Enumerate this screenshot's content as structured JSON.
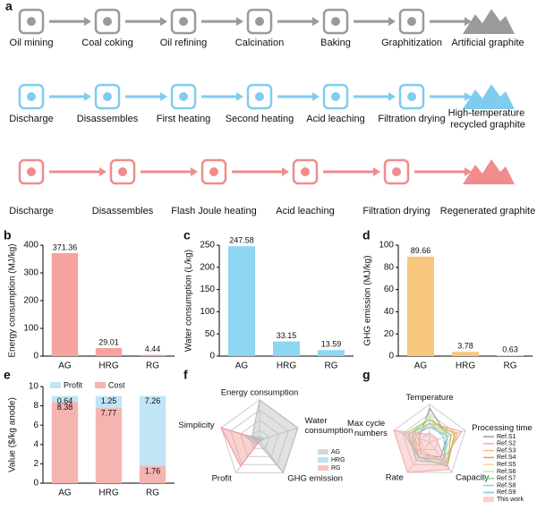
{
  "panel_labels": [
    "a",
    "b",
    "c",
    "d",
    "e",
    "f",
    "g"
  ],
  "process": {
    "rows": [
      {
        "color": "#9a9a9a",
        "steps": [
          "Oil mining",
          "Coal coking",
          "Oil refining",
          "Calcination",
          "Baking",
          "Graphitization",
          "Artificial graphite"
        ]
      },
      {
        "color": "#7fcdee",
        "steps": [
          "Discharge",
          "Disassembles",
          "First heating",
          "Second heating",
          "Acid leaching",
          "Filtration drying",
          "High-temperature recycled graphite"
        ]
      },
      {
        "color": "#f08c8c",
        "steps": [
          "Discharge",
          "Disassembles",
          "Flash Joule heating",
          "Acid leaching",
          "Filtration  drying",
          "Regenerated graphite"
        ]
      }
    ]
  },
  "chart_data": [
    {
      "type": "bar",
      "ylabel": "Energy consumption (MJ/kg)",
      "categories": [
        "AG",
        "HRG",
        "RG"
      ],
      "values": [
        371.36,
        29.01,
        4.44
      ],
      "color": "#f5a39c",
      "ylim": [
        0,
        400
      ],
      "yticks": [
        0,
        100,
        200,
        300,
        400
      ]
    },
    {
      "type": "bar",
      "ylabel": "Water consumption (L/kg)",
      "categories": [
        "AG",
        "HRG",
        "RG"
      ],
      "values": [
        247.58,
        33.15,
        13.59
      ],
      "color": "#8fd6f2",
      "ylim": [
        0,
        250
      ],
      "yticks": [
        0,
        50,
        100,
        150,
        200,
        250
      ]
    },
    {
      "type": "bar",
      "ylabel": "GHG emission (MJ/kg)",
      "categories": [
        "AG",
        "HRG",
        "RG"
      ],
      "values": [
        89.66,
        3.78,
        0.63
      ],
      "color": "#f6c77c",
      "ylim": [
        0,
        100
      ],
      "yticks": [
        0,
        20,
        40,
        60,
        80,
        100
      ]
    },
    {
      "type": "stacked_bar",
      "ylabel": "Value ($/kg anode)",
      "categories": [
        "AG",
        "HRG",
        "RG"
      ],
      "series": [
        {
          "name": "Profit",
          "color": "#bfe5f6",
          "values": [
            0.64,
            1.25,
            7.26
          ]
        },
        {
          "name": "Cost",
          "color": "#f6b4b0",
          "values": [
            8.38,
            7.77,
            1.76
          ]
        }
      ],
      "ylim": [
        0,
        10
      ],
      "yticks": [
        0,
        2,
        4,
        6,
        8,
        10
      ]
    },
    {
      "type": "radar",
      "axes": [
        "Energy consumption",
        "Water consumption",
        "GHG emission",
        "Profit",
        "Simplicity"
      ],
      "rlim": [
        0,
        1
      ],
      "series": [
        {
          "name": "AG",
          "color": "#bdbdbd",
          "values": [
            1,
            1,
            1,
            0.07,
            0.2
          ]
        },
        {
          "name": "HRG",
          "color": "#8fd0ee",
          "values": [
            0.08,
            0.13,
            0.04,
            0.14,
            0.4
          ]
        },
        {
          "name": "RG",
          "color": "#f29a9a",
          "values": [
            0.02,
            0.05,
            0.01,
            0.8,
            1
          ]
        }
      ]
    },
    {
      "type": "radar",
      "axes": [
        "Temperature",
        "Processing time",
        "Capacity",
        "Rate",
        "Max cycle numbers"
      ],
      "rlim": [
        0,
        1
      ],
      "series": [
        {
          "name": "Ref.S1",
          "color": "#9e9e9e",
          "values": [
            0.9,
            0.5,
            0.5,
            0.4,
            0.3
          ]
        },
        {
          "name": "Ref.S2",
          "color": "#f4a6a6",
          "values": [
            0.5,
            0.9,
            0.6,
            0.5,
            0.4
          ]
        },
        {
          "name": "Ref.S3",
          "color": "#f6c17b",
          "values": [
            0.4,
            0.8,
            0.7,
            0.3,
            0.5
          ]
        },
        {
          "name": "Ref.S4",
          "color": "#e8a33d",
          "values": [
            0.6,
            0.7,
            0.8,
            0.5,
            0.6
          ]
        },
        {
          "name": "Ref.S5",
          "color": "#efdc95",
          "values": [
            0.5,
            0.6,
            0.6,
            0.4,
            0.5
          ]
        },
        {
          "name": "Ref.S6",
          "color": "#c9e59b",
          "values": [
            0.7,
            0.5,
            0.7,
            0.6,
            0.5
          ]
        },
        {
          "name": "Ref.S7",
          "color": "#8fd18a",
          "values": [
            0.6,
            0.6,
            0.8,
            0.5,
            0.7
          ]
        },
        {
          "name": "Ref.S8",
          "color": "#7fd6d6",
          "values": [
            0.5,
            0.4,
            0.7,
            0.6,
            0.6
          ]
        },
        {
          "name": "Ref.S9",
          "color": "#8fc3ea",
          "values": [
            0.4,
            0.5,
            0.6,
            0.5,
            0.5
          ]
        },
        {
          "name": "This work",
          "color": "#f6b0b0",
          "values": [
            0.2,
            0.2,
            0.9,
            1,
            1
          ],
          "filled": true
        }
      ]
    }
  ]
}
